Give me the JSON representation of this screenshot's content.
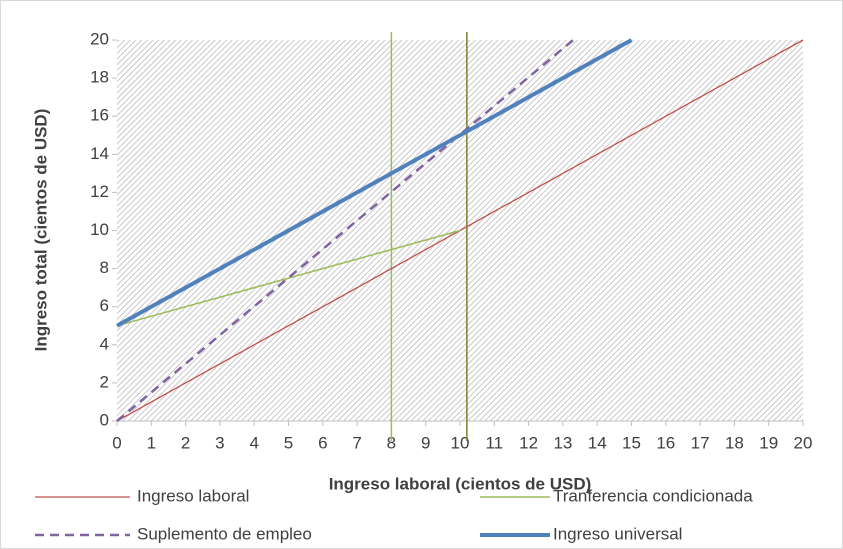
{
  "chart_data": {
    "type": "line",
    "x_label": "Ingreso laboral (cientos de USD)",
    "y_label": "Ingreso total (cientos de USD)",
    "xlim": [
      0,
      20
    ],
    "ylim": [
      0,
      20
    ],
    "xticks": [
      0,
      1,
      2,
      3,
      4,
      5,
      6,
      7,
      8,
      9,
      10,
      11,
      12,
      13,
      14,
      15,
      16,
      17,
      18,
      19,
      20
    ],
    "yticks": [
      0,
      2,
      4,
      6,
      8,
      10,
      12,
      14,
      16,
      18,
      20
    ],
    "series": [
      {
        "name": "Ingreso laboral",
        "color": "#c0504d",
        "width": 1.3,
        "dash": false,
        "x": [
          0,
          20
        ],
        "values": [
          0,
          20
        ]
      },
      {
        "name": "Tranferencia condicionada",
        "color": "#9bbb59",
        "width": 1.5,
        "dash": false,
        "x": [
          0,
          10
        ],
        "values": [
          5,
          10
        ]
      },
      {
        "name": "Suplemento de empleo",
        "color": "#8064a2",
        "width": 2.5,
        "dash": true,
        "x": [
          0,
          13.3
        ],
        "values": [
          0,
          20
        ]
      },
      {
        "name": "Ingreso universal",
        "color": "#4f81bd",
        "width": 4,
        "dash": false,
        "x": [
          0,
          15
        ],
        "values": [
          5,
          20
        ]
      }
    ],
    "vlines": [
      {
        "x": 8,
        "color": "#9bbb59"
      },
      {
        "x": 10.2,
        "color": "#7f7f2a"
      }
    ]
  }
}
